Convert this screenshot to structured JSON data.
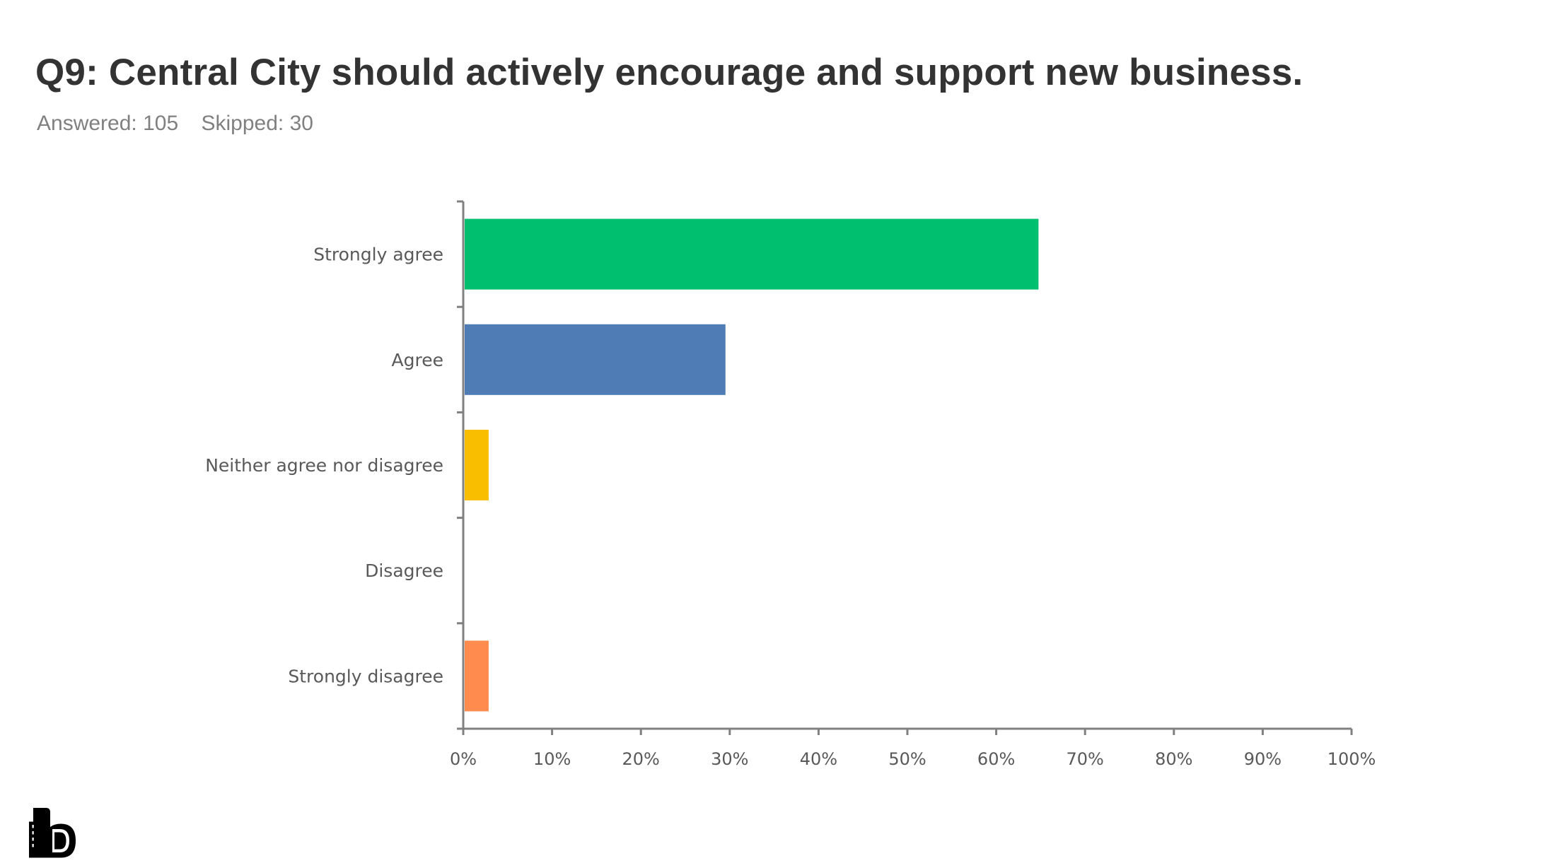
{
  "title": "Q9: Central City should actively encourage and support new business.",
  "answered": "Answered: 105",
  "skipped": "Skipped: 30",
  "logo_text": "b",
  "chart_data": {
    "type": "bar",
    "orientation": "horizontal",
    "title": "Q9: Central City should actively encourage and support new business.",
    "xlabel": "",
    "ylabel": "",
    "categories": [
      "Strongly agree",
      "Agree",
      "Neither agree nor disagree",
      "Disagree",
      "Strongly disagree"
    ],
    "values": [
      64.76,
      29.52,
      2.86,
      0,
      2.86
    ],
    "colors": [
      "#00bf6f",
      "#507cb6",
      "#f9be00",
      "#6bc8cd",
      "#ff8b4f"
    ],
    "xlim": [
      0,
      100
    ],
    "xticks": [
      "0%",
      "10%",
      "20%",
      "30%",
      "40%",
      "50%",
      "60%",
      "70%",
      "80%",
      "90%",
      "100%"
    ],
    "grid": false,
    "legend": "none"
  }
}
